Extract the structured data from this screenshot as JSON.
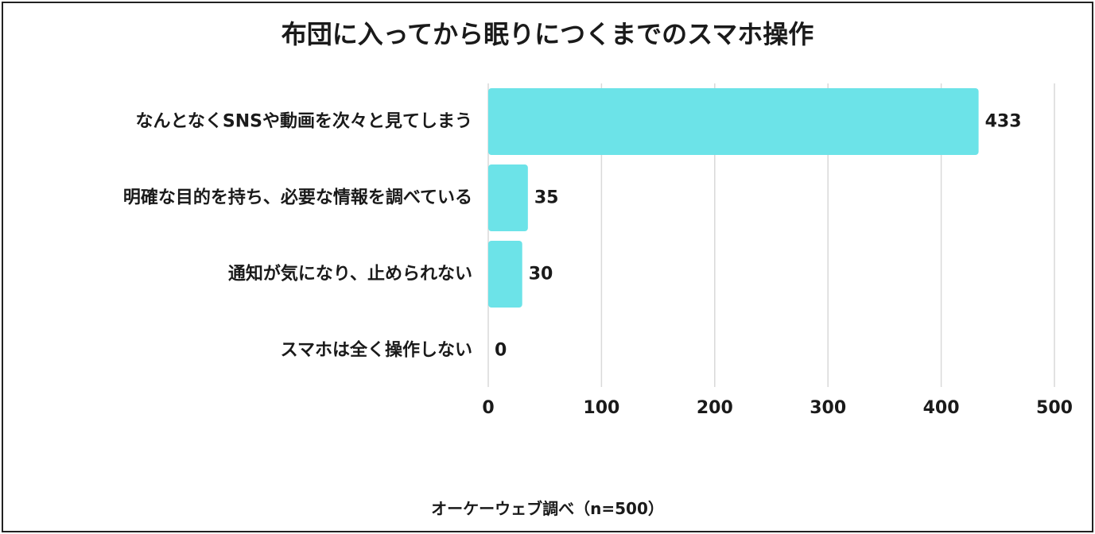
{
  "chart_data": {
    "type": "bar",
    "orientation": "horizontal",
    "title": "布団に入ってから眠りにつくまでのスマホ操作",
    "categories": [
      "なんとなくSNSや動画を次々と見てしまう",
      "明確な目的を持ち、必要な情報を調べている",
      "通知が気になり、止められない",
      "スマホは全く操作しない"
    ],
    "values": [
      433,
      35,
      30,
      0
    ],
    "value_labels": [
      "433",
      "35",
      "30",
      "0"
    ],
    "xlim": [
      0,
      500
    ],
    "x_ticks": [
      0,
      100,
      200,
      300,
      400,
      500
    ],
    "x_tick_labels": [
      "0",
      "100",
      "200",
      "300",
      "400",
      "500"
    ],
    "xlabel": "",
    "ylabel": "",
    "grid": "vertical",
    "legend": "none",
    "bar_color": "#6ce3e8",
    "grid_color": "#d9d9d9",
    "text_color": "#1a1a1a"
  },
  "source_note": "オーケーウェブ調べ（n=500）"
}
